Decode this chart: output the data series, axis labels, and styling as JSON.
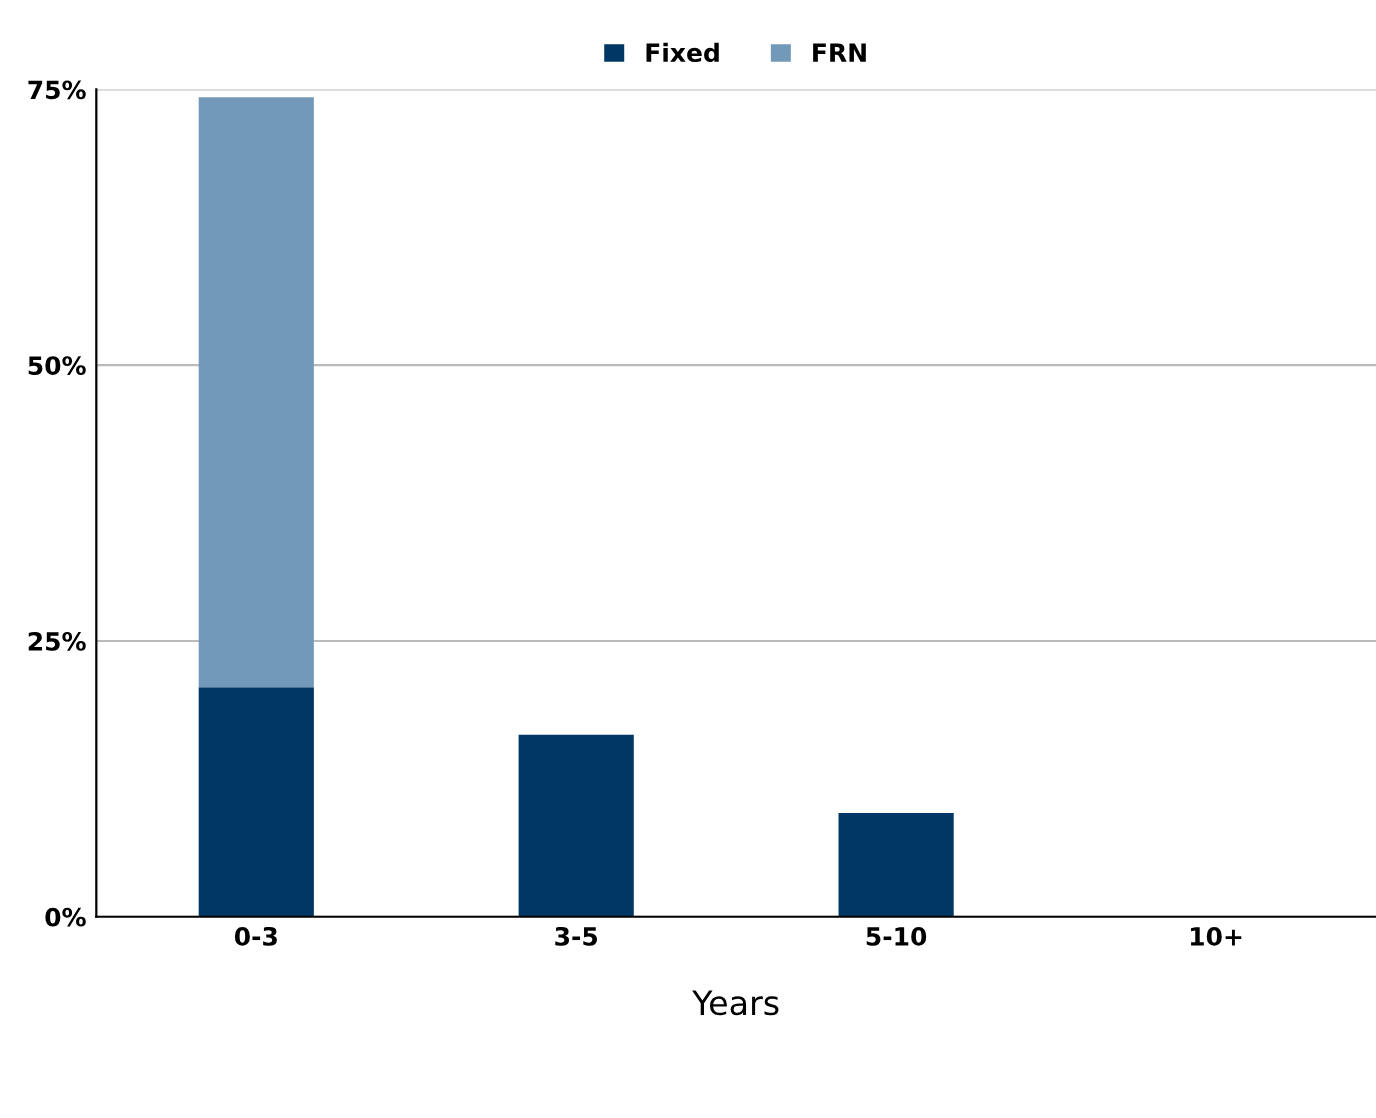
{
  "chart_data": {
    "type": "bar",
    "stacked": true,
    "xlabel": "Years",
    "categories": [
      "0-3",
      "3-5",
      "5-10",
      "10+"
    ],
    "series": [
      {
        "name": "Fixed",
        "color": "#003764",
        "values": [
          20.8,
          16.5,
          9.4,
          0
        ]
      },
      {
        "name": "FRN",
        "color": "#7299b8",
        "values": [
          53.5,
          0,
          0,
          0
        ]
      }
    ],
    "ylim": [
      0,
      75
    ],
    "yticks": [
      {
        "value": 0,
        "label": "0%"
      },
      {
        "value": 25,
        "label": "25%"
      },
      {
        "value": 50,
        "label": "50%"
      },
      {
        "value": 75,
        "label": "75%"
      }
    ],
    "grid": "y",
    "legend": "top"
  }
}
